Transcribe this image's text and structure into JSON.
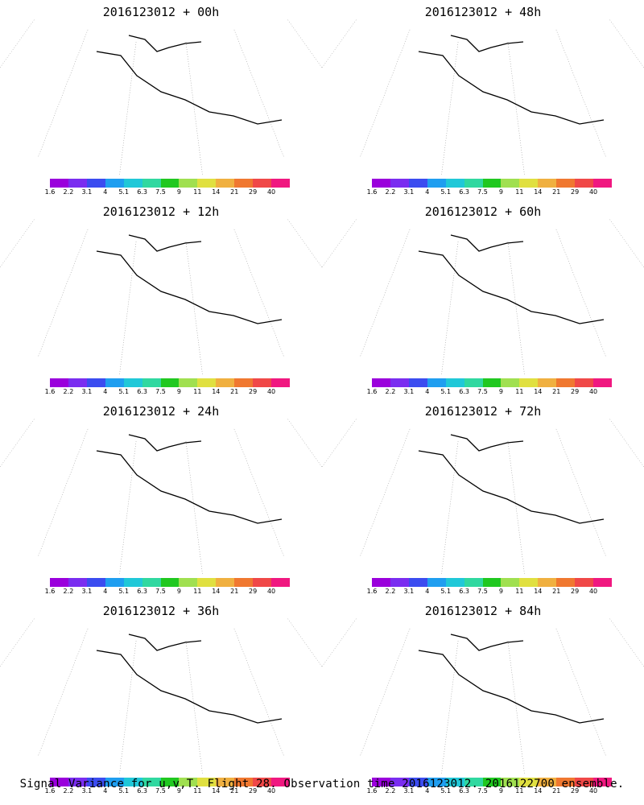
{
  "palette": [
    "#9a00dc",
    "#7a2df0",
    "#3b4cf0",
    "#1f9ef0",
    "#20c8d8",
    "#30d8a0",
    "#20c820",
    "#a0e050",
    "#e0e040",
    "#f0b040",
    "#f07830",
    "#f04848",
    "#f01880"
  ],
  "colorbar_labels": [
    "1.6",
    "2.2",
    "3.1",
    "4",
    "5.1",
    "6.3",
    "7.5",
    "9",
    "11",
    "14",
    "21",
    "29",
    "40"
  ],
  "panels": [
    {
      "title": "2016123012 + 00h",
      "lead_hours": 0
    },
    {
      "title": "2016123012 + 48h",
      "lead_hours": 48
    },
    {
      "title": "2016123012 + 12h",
      "lead_hours": 12
    },
    {
      "title": "2016123012 + 60h",
      "lead_hours": 60
    },
    {
      "title": "2016123012 + 24h",
      "lead_hours": 24
    },
    {
      "title": "2016123012 + 72h",
      "lead_hours": 72
    },
    {
      "title": "2016123012 + 36h",
      "lead_hours": 36
    },
    {
      "title": "2016123012 + 84h",
      "lead_hours": 84
    }
  ],
  "caption": "Signal Variance for u,v,T. Flight 28. Observation time 2016123012. 2016122700 ensemble."
}
